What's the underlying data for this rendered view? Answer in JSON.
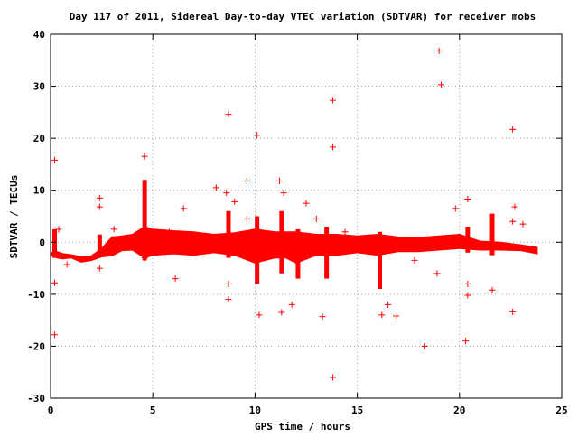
{
  "chart_data": {
    "type": "scatter",
    "title": "Day 117 of 2011, Sidereal Day-to-day VTEC variation (SDTVAR) for receiver mobs",
    "xlabel": "GPS time / hours",
    "ylabel": "SDTVAR / TECUs",
    "xlim": [
      0,
      25
    ],
    "ylim": [
      -30,
      40
    ],
    "xticks": [
      0,
      5,
      10,
      15,
      20,
      25
    ],
    "yticks": [
      -30,
      -20,
      -10,
      0,
      10,
      20,
      30,
      40
    ],
    "grid": true,
    "marker": "plus",
    "color": "#ff0000",
    "band": [
      [
        0.0,
        -2.5,
        -2.0
      ],
      [
        0.3,
        -3.0,
        -1.8
      ],
      [
        0.6,
        -3.2,
        -2.2
      ],
      [
        1.0,
        -3.0,
        -2.4
      ],
      [
        1.5,
        -3.8,
        -2.8
      ],
      [
        2.0,
        -3.5,
        -2.6
      ],
      [
        2.5,
        -2.8,
        -1.2
      ],
      [
        3.0,
        -2.6,
        1.0
      ],
      [
        3.5,
        -1.6,
        1.2
      ],
      [
        4.0,
        -1.5,
        1.5
      ],
      [
        4.6,
        -3.0,
        3.0
      ],
      [
        5.0,
        -2.5,
        2.5
      ],
      [
        6.0,
        -2.2,
        2.2
      ],
      [
        7.0,
        -2.5,
        2.0
      ],
      [
        8.0,
        -2.0,
        1.5
      ],
      [
        9.0,
        -2.5,
        1.8
      ],
      [
        10.0,
        -4.0,
        2.5
      ],
      [
        11.0,
        -3.0,
        2.0
      ],
      [
        11.5,
        -3.0,
        2.0
      ],
      [
        12.0,
        -4.0,
        2.0
      ],
      [
        13.0,
        -2.5,
        1.5
      ],
      [
        14.0,
        -2.5,
        1.5
      ],
      [
        15.0,
        -2.0,
        1.2
      ],
      [
        16.0,
        -2.5,
        1.5
      ],
      [
        17.0,
        -1.8,
        1.0
      ],
      [
        18.0,
        -1.8,
        0.9
      ],
      [
        19.0,
        -1.5,
        1.2
      ],
      [
        20.0,
        -1.2,
        1.5
      ],
      [
        21.0,
        -1.5,
        0.2
      ],
      [
        22.0,
        -1.5,
        0.0
      ],
      [
        23.0,
        -1.6,
        -0.5
      ],
      [
        23.8,
        -2.2,
        -1.0
      ]
    ],
    "spikes": [
      [
        0.2,
        -3.0,
        2.5
      ],
      [
        2.4,
        -2.5,
        1.5
      ],
      [
        4.6,
        -3.5,
        12.0
      ],
      [
        8.7,
        -3.0,
        6.0
      ],
      [
        10.1,
        -8.0,
        5.0
      ],
      [
        11.3,
        -6.0,
        6.0
      ],
      [
        12.1,
        -7.0,
        2.5
      ],
      [
        13.5,
        -7.0,
        3.0
      ],
      [
        16.1,
        -9.0,
        2.0
      ],
      [
        20.4,
        -2.0,
        3.0
      ],
      [
        21.6,
        -2.5,
        5.5
      ]
    ],
    "outliers": [
      [
        0.2,
        15.8
      ],
      [
        0.2,
        -7.8
      ],
      [
        0.2,
        -17.8
      ],
      [
        0.4,
        2.5
      ],
      [
        0.8,
        -4.3
      ],
      [
        2.4,
        8.5
      ],
      [
        2.4,
        6.8
      ],
      [
        2.4,
        -5.0
      ],
      [
        3.1,
        2.5
      ],
      [
        4.6,
        16.5
      ],
      [
        4.6,
        -3.0
      ],
      [
        5.8,
        2.0
      ],
      [
        6.1,
        -7.0
      ],
      [
        6.5,
        6.5
      ],
      [
        8.1,
        10.5
      ],
      [
        8.6,
        9.5
      ],
      [
        8.7,
        24.6
      ],
      [
        8.7,
        -8.0
      ],
      [
        8.7,
        -11.0
      ],
      [
        9.0,
        7.8
      ],
      [
        9.6,
        11.8
      ],
      [
        9.6,
        4.5
      ],
      [
        10.1,
        20.6
      ],
      [
        10.2,
        -14.0
      ],
      [
        11.2,
        11.8
      ],
      [
        11.3,
        -13.5
      ],
      [
        11.4,
        9.5
      ],
      [
        11.8,
        -12.0
      ],
      [
        12.5,
        7.5
      ],
      [
        13.0,
        4.5
      ],
      [
        13.3,
        -14.3
      ],
      [
        13.8,
        27.3
      ],
      [
        13.8,
        18.3
      ],
      [
        13.8,
        -26.0
      ],
      [
        14.4,
        2.0
      ],
      [
        16.2,
        -14.0
      ],
      [
        16.5,
        -12.0
      ],
      [
        16.9,
        -14.2
      ],
      [
        17.8,
        -3.5
      ],
      [
        18.3,
        -20.0
      ],
      [
        18.9,
        -6.0
      ],
      [
        19.0,
        36.8
      ],
      [
        19.1,
        30.3
      ],
      [
        19.8,
        6.5
      ],
      [
        20.4,
        8.3
      ],
      [
        20.4,
        -8.0
      ],
      [
        20.3,
        -19.0
      ],
      [
        20.4,
        -10.2
      ],
      [
        21.6,
        -9.2
      ],
      [
        22.6,
        21.7
      ],
      [
        22.6,
        -13.4
      ],
      [
        22.7,
        6.8
      ],
      [
        22.6,
        4.0
      ],
      [
        23.1,
        3.5
      ]
    ]
  }
}
